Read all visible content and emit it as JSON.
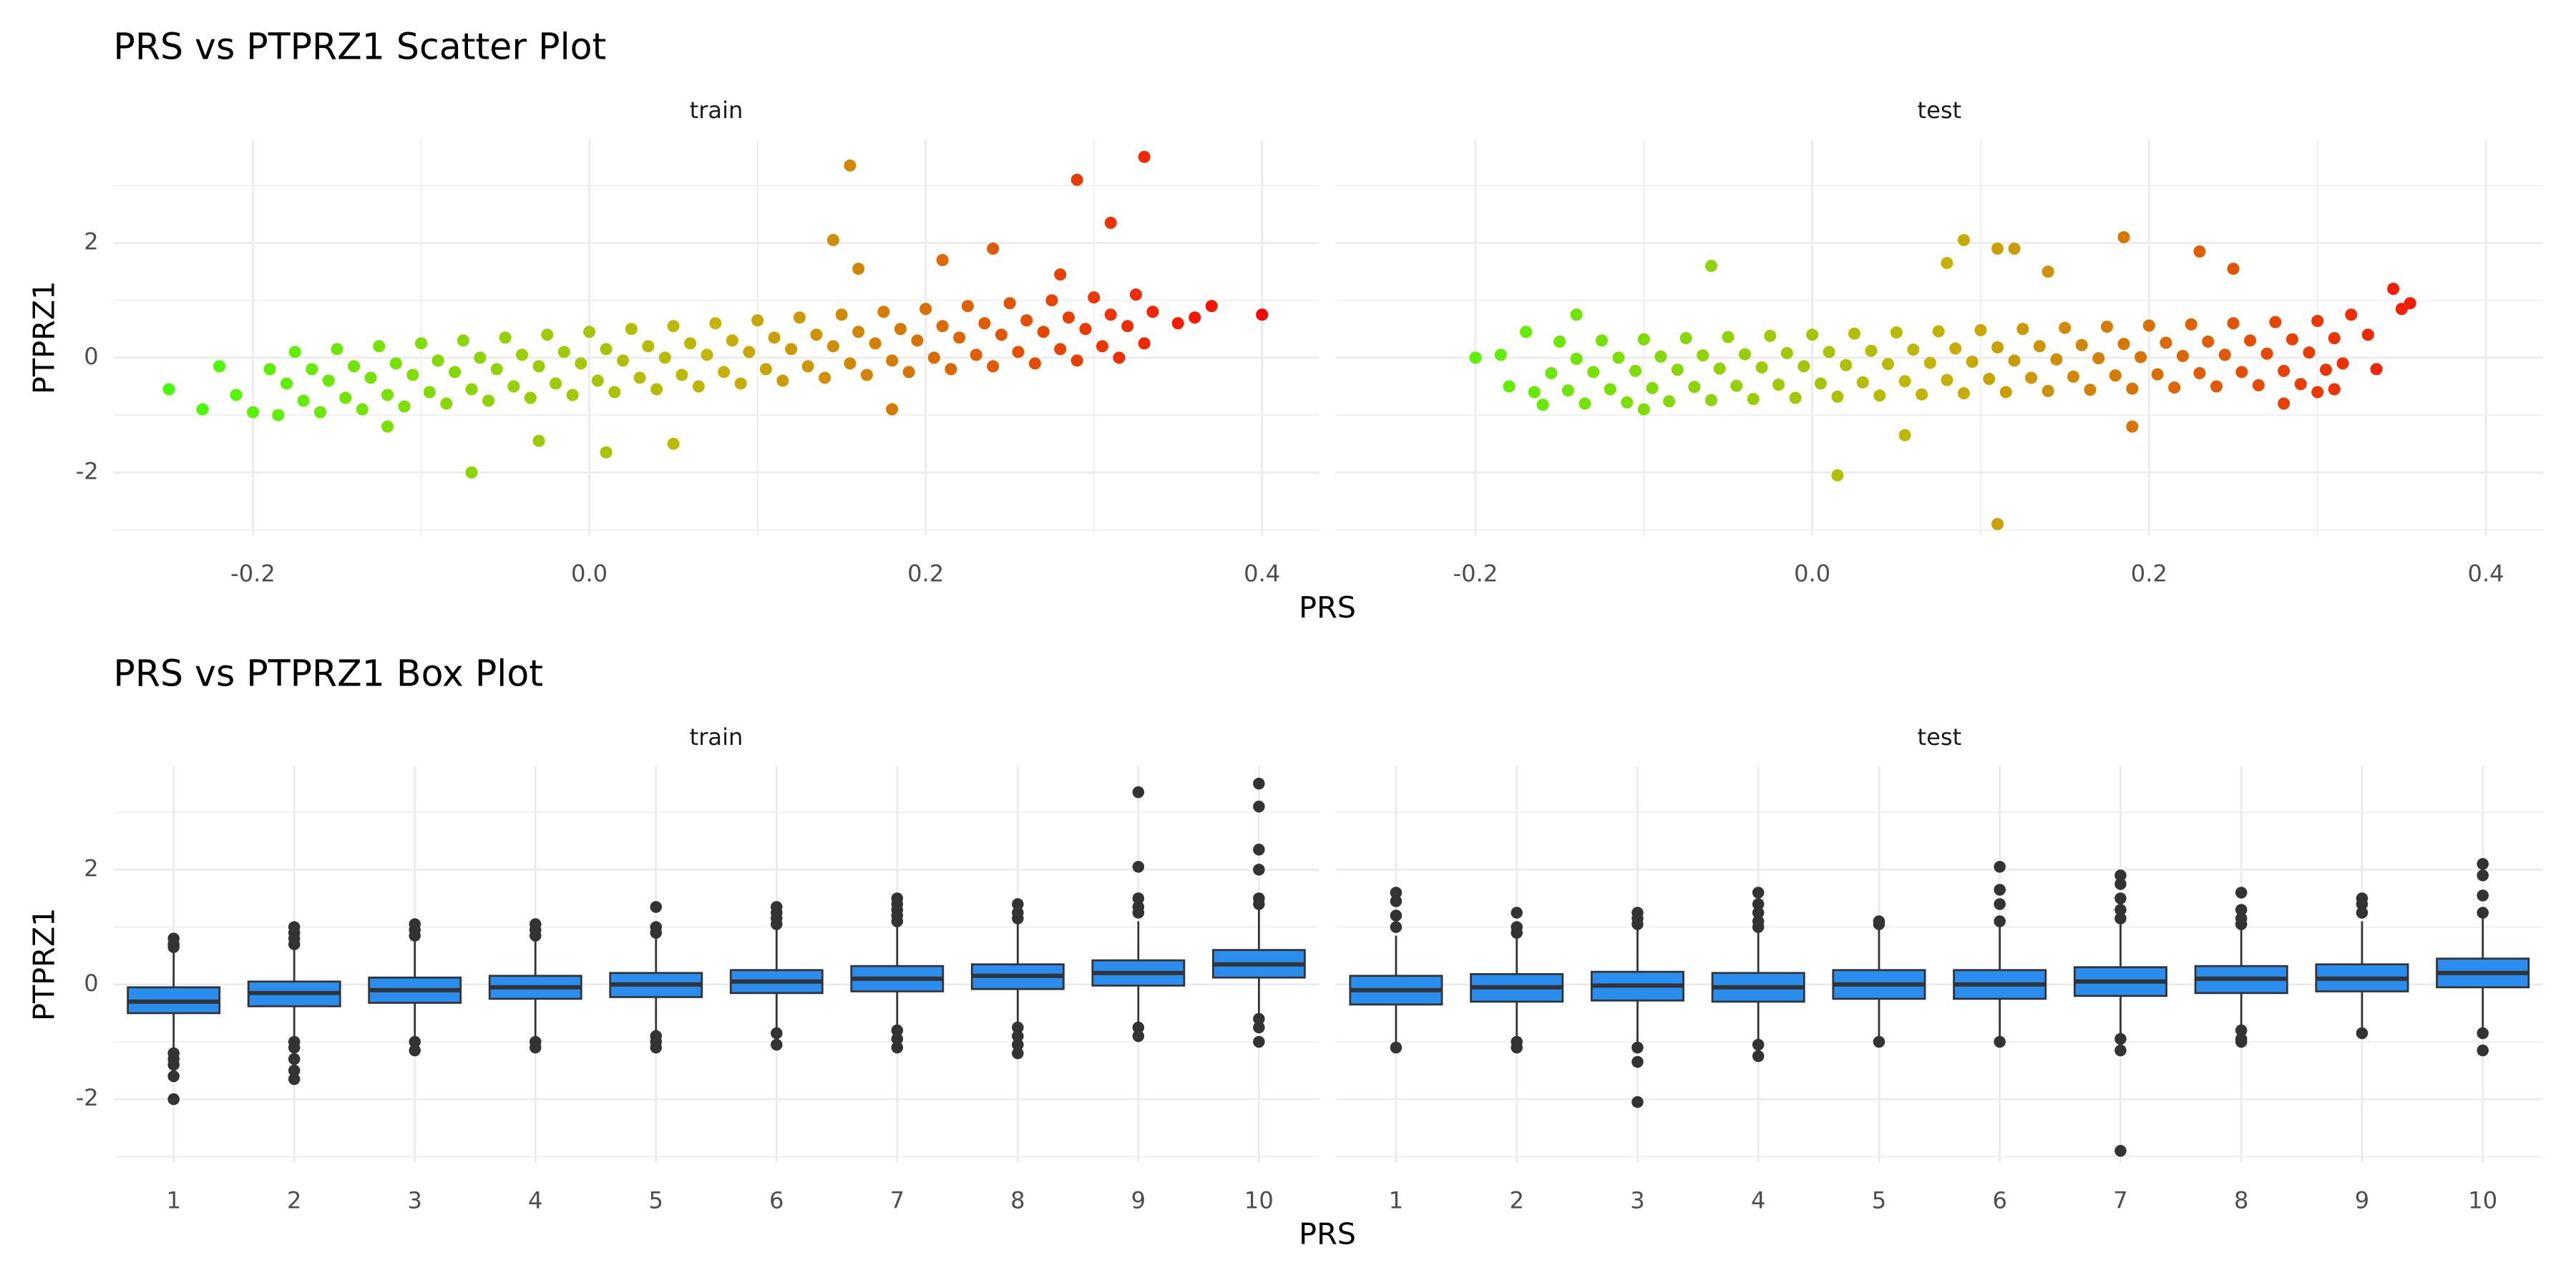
{
  "chart_data": [
    {
      "type": "scatter",
      "title": "PRS vs PTPRZ1 Scatter Plot",
      "xlabel": "PRS",
      "ylabel": "PTPRZ1",
      "xlim": [
        -0.283,
        0.434
      ],
      "xticks": [
        -0.2,
        {
          "value": 0,
          "label": "0.0"
        },
        0.2,
        0.4
      ],
      "xminor": [
        -0.1,
        0.1,
        0.3
      ],
      "ylim": [
        -3.1,
        3.8
      ],
      "yticks": [
        -2,
        0,
        2
      ],
      "yminor": [
        -3,
        -1,
        1,
        3
      ],
      "grid": true,
      "point_colors": [
        "#44ff00",
        "#c4b400",
        "#ff0000"
      ],
      "facets": [
        {
          "name": "train",
          "x": [
            -0.175,
            -0.165,
            -0.18,
            -0.17,
            -0.185,
            -0.15,
            -0.14,
            -0.155,
            -0.145,
            -0.16,
            -0.125,
            -0.115,
            -0.13,
            -0.12,
            -0.135,
            -0.1,
            -0.09,
            -0.105,
            -0.095,
            -0.11,
            -0.075,
            -0.065,
            -0.08,
            -0.07,
            -0.085,
            -0.05,
            -0.04,
            -0.055,
            -0.045,
            -0.06,
            -0.025,
            -0.015,
            -0.03,
            -0.02,
            -0.035,
            0,
            0.01,
            -0.005,
            0.005,
            -0.01,
            0.025,
            0.035,
            0.02,
            0.03,
            0.015,
            0.05,
            0.06,
            0.045,
            0.055,
            0.04,
            0.075,
            0.085,
            0.07,
            0.08,
            0.065,
            0.1,
            0.11,
            0.095,
            0.105,
            0.09,
            0.125,
            0.135,
            0.12,
            0.13,
            0.115,
            0.15,
            0.16,
            0.145,
            0.155,
            0.14,
            0.175,
            0.185,
            0.17,
            0.18,
            0.165,
            0.2,
            0.21,
            0.195,
            0.205,
            0.19,
            0.225,
            0.235,
            0.22,
            0.23,
            0.215,
            0.25,
            0.26,
            0.245,
            0.255,
            0.24,
            0.275,
            0.285,
            0.27,
            0.28,
            0.265,
            0.3,
            0.31,
            0.295,
            0.305,
            0.29,
            0.325,
            0.335,
            0.32,
            0.33,
            0.315,
            0.155,
            0.33,
            0.29,
            0.31,
            0.24,
            0.145,
            0.4,
            -0.25,
            -0.07,
            0.37,
            0.36,
            0.35,
            -0.22,
            -0.23,
            -0.2,
            -0.21,
            -0.19,
            0.21,
            0.28,
            0.16,
            0.18,
            0.05,
            0.01,
            -0.12,
            -0.03
          ],
          "y": [
            0.1,
            -0.2,
            -0.45,
            -0.75,
            -1.0,
            0.15,
            -0.15,
            -0.4,
            -0.7,
            -0.95,
            0.2,
            -0.1,
            -0.35,
            -0.65,
            -0.9,
            0.25,
            -0.05,
            -0.3,
            -0.6,
            -0.85,
            0.3,
            0,
            -0.25,
            -0.55,
            -0.8,
            0.35,
            0.05,
            -0.2,
            -0.5,
            -0.75,
            0.4,
            0.1,
            -0.15,
            -0.45,
            -0.7,
            0.45,
            0.15,
            -0.1,
            -0.4,
            -0.65,
            0.5,
            0.2,
            -0.05,
            -0.35,
            -0.6,
            0.55,
            0.25,
            0,
            -0.3,
            -0.55,
            0.6,
            0.3,
            0.05,
            -0.25,
            -0.5,
            0.65,
            0.35,
            0.1,
            -0.2,
            -0.45,
            0.7,
            0.4,
            0.15,
            -0.15,
            -0.4,
            0.75,
            0.45,
            0.2,
            -0.1,
            -0.35,
            0.8,
            0.5,
            0.25,
            -0.05,
            -0.3,
            0.85,
            0.55,
            0.3,
            0,
            -0.25,
            0.9,
            0.6,
            0.35,
            0.05,
            -0.2,
            0.95,
            0.65,
            0.4,
            0.1,
            -0.15,
            1.0,
            0.7,
            0.45,
            0.15,
            -0.1,
            1.05,
            0.75,
            0.5,
            0.2,
            -0.05,
            1.1,
            0.8,
            0.55,
            0.25,
            0,
            3.35,
            3.5,
            3.1,
            2.35,
            1.9,
            2.05,
            0.75,
            -0.55,
            -2.0,
            0.9,
            0.7,
            0.6,
            -0.15,
            -0.9,
            -0.95,
            -0.65,
            -0.2,
            1.7,
            1.45,
            1.55,
            -0.9,
            -1.5,
            -1.65,
            -1.2,
            -1.45
          ]
        },
        {
          "name": "test",
          "x": [
            -0.15,
            -0.14,
            -0.155,
            -0.145,
            -0.16,
            -0.125,
            -0.115,
            -0.13,
            -0.12,
            -0.135,
            -0.1,
            -0.09,
            -0.105,
            -0.095,
            -0.11,
            -0.075,
            -0.065,
            -0.08,
            -0.07,
            -0.085,
            -0.05,
            -0.04,
            -0.055,
            -0.045,
            -0.06,
            -0.025,
            -0.015,
            -0.03,
            -0.02,
            -0.035,
            0,
            0.01,
            -0.005,
            0.005,
            -0.01,
            0.025,
            0.035,
            0.02,
            0.03,
            0.015,
            0.05,
            0.06,
            0.045,
            0.055,
            0.04,
            0.075,
            0.085,
            0.07,
            0.08,
            0.065,
            0.1,
            0.11,
            0.095,
            0.105,
            0.09,
            0.125,
            0.135,
            0.12,
            0.13,
            0.115,
            0.15,
            0.16,
            0.145,
            0.155,
            0.14,
            0.175,
            0.185,
            0.17,
            0.18,
            0.165,
            0.2,
            0.21,
            0.195,
            0.205,
            0.19,
            0.225,
            0.235,
            0.22,
            0.23,
            0.215,
            0.25,
            0.26,
            0.245,
            0.255,
            0.24,
            0.275,
            0.285,
            0.27,
            0.28,
            0.265,
            0.3,
            0.31,
            0.295,
            0.305,
            0.29,
            0.11,
            0.015,
            0.185,
            0.09,
            0.12,
            0.11,
            -0.06,
            0.23,
            0.25,
            0.08,
            0.14,
            0.355,
            0.345,
            0.32,
            0.33,
            0.335,
            0.31,
            0.315,
            -0.2,
            -0.185,
            -0.17,
            -0.18,
            -0.165,
            -0.14,
            0.19,
            0.055,
            -0.1,
            0.28,
            0.3,
            0.35
          ],
          "y": [
            0.28,
            -0.02,
            -0.27,
            -0.57,
            -0.82,
            0.3,
            0,
            -0.25,
            -0.55,
            -0.8,
            0.32,
            0.02,
            -0.23,
            -0.53,
            -0.78,
            0.34,
            0.04,
            -0.21,
            -0.51,
            -0.76,
            0.36,
            0.06,
            -0.19,
            -0.49,
            -0.74,
            0.38,
            0.08,
            -0.17,
            -0.47,
            -0.72,
            0.4,
            0.1,
            -0.15,
            -0.45,
            -0.7,
            0.42,
            0.12,
            -0.13,
            -0.43,
            -0.68,
            0.44,
            0.14,
            -0.11,
            -0.41,
            -0.66,
            0.46,
            0.16,
            -0.09,
            -0.39,
            -0.64,
            0.48,
            0.18,
            -0.07,
            -0.37,
            -0.62,
            0.5,
            0.2,
            -0.05,
            -0.35,
            -0.6,
            0.52,
            0.22,
            -0.03,
            -0.33,
            -0.58,
            0.54,
            0.24,
            -0.01,
            -0.31,
            -0.56,
            0.56,
            0.26,
            0.01,
            -0.29,
            -0.54,
            0.58,
            0.28,
            0.03,
            -0.27,
            -0.52,
            0.6,
            0.3,
            0.05,
            -0.25,
            -0.5,
            0.62,
            0.32,
            0.07,
            -0.23,
            -0.48,
            0.64,
            0.34,
            0.09,
            -0.21,
            -0.46,
            -2.9,
            -2.05,
            2.1,
            2.05,
            1.9,
            1.9,
            1.6,
            1.85,
            1.55,
            1.65,
            1.5,
            0.95,
            1.2,
            0.75,
            0.4,
            -0.2,
            -0.55,
            -0.1,
            0,
            0.05,
            0.45,
            -0.5,
            -0.6,
            0.75,
            -1.2,
            -1.35,
            -0.9,
            -0.8,
            -0.6,
            0.85
          ]
        }
      ]
    },
    {
      "type": "box",
      "title": "PRS vs PTPRZ1 Box Plot",
      "xlabel": "PRS",
      "ylabel": "PTPRZ1",
      "categories": [
        "1",
        "2",
        "3",
        "4",
        "5",
        "6",
        "7",
        "8",
        "9",
        "10"
      ],
      "ylim": [
        -3.1,
        3.8
      ],
      "yticks": [
        -2,
        0,
        2
      ],
      "yminor": [
        -3,
        -1,
        1,
        3
      ],
      "grid": true,
      "fill": "#2a8ef0",
      "outline": "#333333",
      "outlier_color": "#333333",
      "facets": [
        {
          "name": "train",
          "q1": [
            -0.5,
            -0.38,
            -0.32,
            -0.25,
            -0.22,
            -0.15,
            -0.12,
            -0.08,
            -0.02,
            0.12
          ],
          "median": [
            -0.3,
            -0.15,
            -0.1,
            -0.05,
            0.0,
            0.05,
            0.1,
            0.15,
            0.2,
            0.35
          ],
          "q3": [
            -0.05,
            0.05,
            0.12,
            0.15,
            0.2,
            0.25,
            0.32,
            0.35,
            0.42,
            0.6
          ],
          "whisker_low": [
            -1.1,
            -0.95,
            -0.95,
            -0.9,
            -0.85,
            -0.8,
            -0.75,
            -0.7,
            -0.65,
            -0.5
          ],
          "whisker_high": [
            0.6,
            0.6,
            0.75,
            0.8,
            0.85,
            0.95,
            1.0,
            1.05,
            1.1,
            1.3
          ],
          "outliers": [
            [
              0.8,
              0.7,
              0.65,
              -1.2,
              -1.3,
              -1.4,
              -1.6,
              -2.0
            ],
            [
              1.0,
              0.9,
              0.8,
              0.7,
              -1.0,
              -1.1,
              -1.3,
              -1.5,
              -1.65
            ],
            [
              1.05,
              0.95,
              0.85,
              -1.0,
              -1.15
            ],
            [
              1.05,
              0.95,
              0.85,
              -1.0,
              -1.1
            ],
            [
              1.35,
              1.0,
              0.9,
              -0.9,
              -1.0,
              -1.1
            ],
            [
              1.35,
              1.25,
              1.15,
              1.05,
              -0.85,
              -1.05
            ],
            [
              1.5,
              1.4,
              1.3,
              1.2,
              1.1,
              -0.8,
              -0.95,
              -1.1
            ],
            [
              1.4,
              1.25,
              1.15,
              -0.75,
              -0.9,
              -1.05,
              -1.2
            ],
            [
              3.35,
              2.05,
              1.5,
              1.35,
              1.25,
              -0.75,
              -0.9
            ],
            [
              3.5,
              3.1,
              2.35,
              2.0,
              1.5,
              1.4,
              -0.6,
              -0.75,
              -1.0
            ]
          ]
        },
        {
          "name": "test",
          "q1": [
            -0.35,
            -0.3,
            -0.28,
            -0.3,
            -0.25,
            -0.25,
            -0.2,
            -0.15,
            -0.12,
            -0.05
          ],
          "median": [
            -0.1,
            -0.05,
            -0.02,
            -0.05,
            0.0,
            0.0,
            0.05,
            0.1,
            0.1,
            0.2
          ],
          "q3": [
            0.15,
            0.18,
            0.22,
            0.2,
            0.25,
            0.25,
            0.3,
            0.32,
            0.35,
            0.45
          ],
          "whisker_low": [
            -1.0,
            -0.95,
            -1.0,
            -0.95,
            -0.95,
            -0.95,
            -0.9,
            -0.75,
            -0.8,
            -0.75
          ],
          "whisker_high": [
            0.85,
            0.85,
            0.95,
            0.95,
            0.95,
            1.0,
            1.05,
            1.0,
            1.1,
            1.2
          ],
          "outliers": [
            [
              1.6,
              1.45,
              1.2,
              1.0,
              -1.1
            ],
            [
              1.25,
              1.0,
              0.9,
              -1.0,
              -1.1
            ],
            [
              1.25,
              1.15,
              1.05,
              -1.1,
              -1.35,
              -2.05
            ],
            [
              1.6,
              1.4,
              1.25,
              1.1,
              1.0,
              -1.05,
              -1.25
            ],
            [
              1.1,
              1.05,
              -1.0
            ],
            [
              2.05,
              1.65,
              1.4,
              1.1,
              -1.0
            ],
            [
              1.9,
              1.75,
              1.5,
              1.3,
              1.15,
              -0.95,
              -1.15,
              -2.9
            ],
            [
              1.6,
              1.3,
              1.15,
              1.05,
              -0.8,
              -0.95,
              -1.0
            ],
            [
              1.5,
              1.4,
              1.25,
              -0.85
            ],
            [
              2.1,
              1.9,
              1.55,
              1.25,
              -0.85,
              -1.15
            ]
          ]
        }
      ]
    }
  ]
}
